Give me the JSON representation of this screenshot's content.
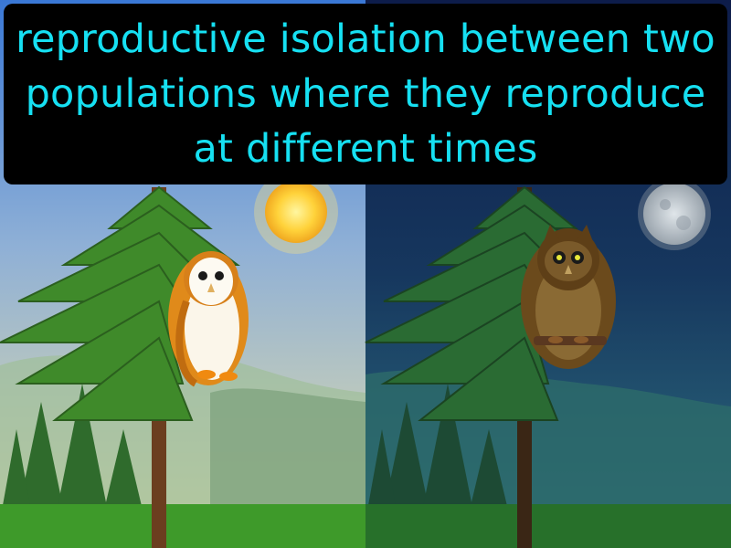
{
  "caption": {
    "text": "reproductive isolation between two populations where they reproduce at different times"
  },
  "panels": [
    {
      "time": "day",
      "celestial_icon": "sun-icon",
      "animal_icon": "barn-owl-icon"
    },
    {
      "time": "night",
      "celestial_icon": "moon-icon",
      "animal_icon": "brown-owl-icon"
    }
  ],
  "colors": {
    "caption_text": "#16e0f2",
    "caption_bg": "#000000",
    "day_sky_top": "#3a78d6",
    "day_sky_bottom": "#e6dfa8",
    "night_sky_top": "#0d1c4a",
    "night_sky_bottom": "#2e6f80",
    "grass": "#3e9a2a"
  }
}
